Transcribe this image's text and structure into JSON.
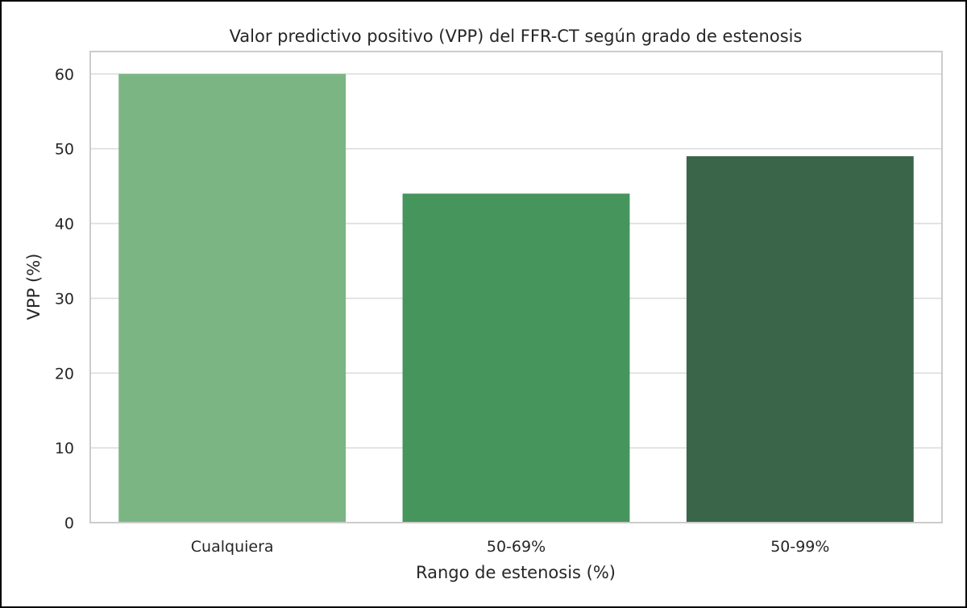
{
  "chart_data": {
    "type": "bar",
    "title": "Valor predictivo positivo (VPP) del FFR-CT según grado de estenosis",
    "xlabel": "Rango de estenosis (%)",
    "ylabel": "VPP (%)",
    "categories": [
      "Cualquiera",
      "50-69%",
      "50-99%"
    ],
    "values": [
      60,
      44,
      49
    ],
    "colors": [
      "#7bb584",
      "#45955c",
      "#3b6549"
    ],
    "ylim": [
      0,
      63
    ],
    "yticks": [
      0,
      10,
      20,
      30,
      40,
      50,
      60
    ],
    "grid": true
  }
}
